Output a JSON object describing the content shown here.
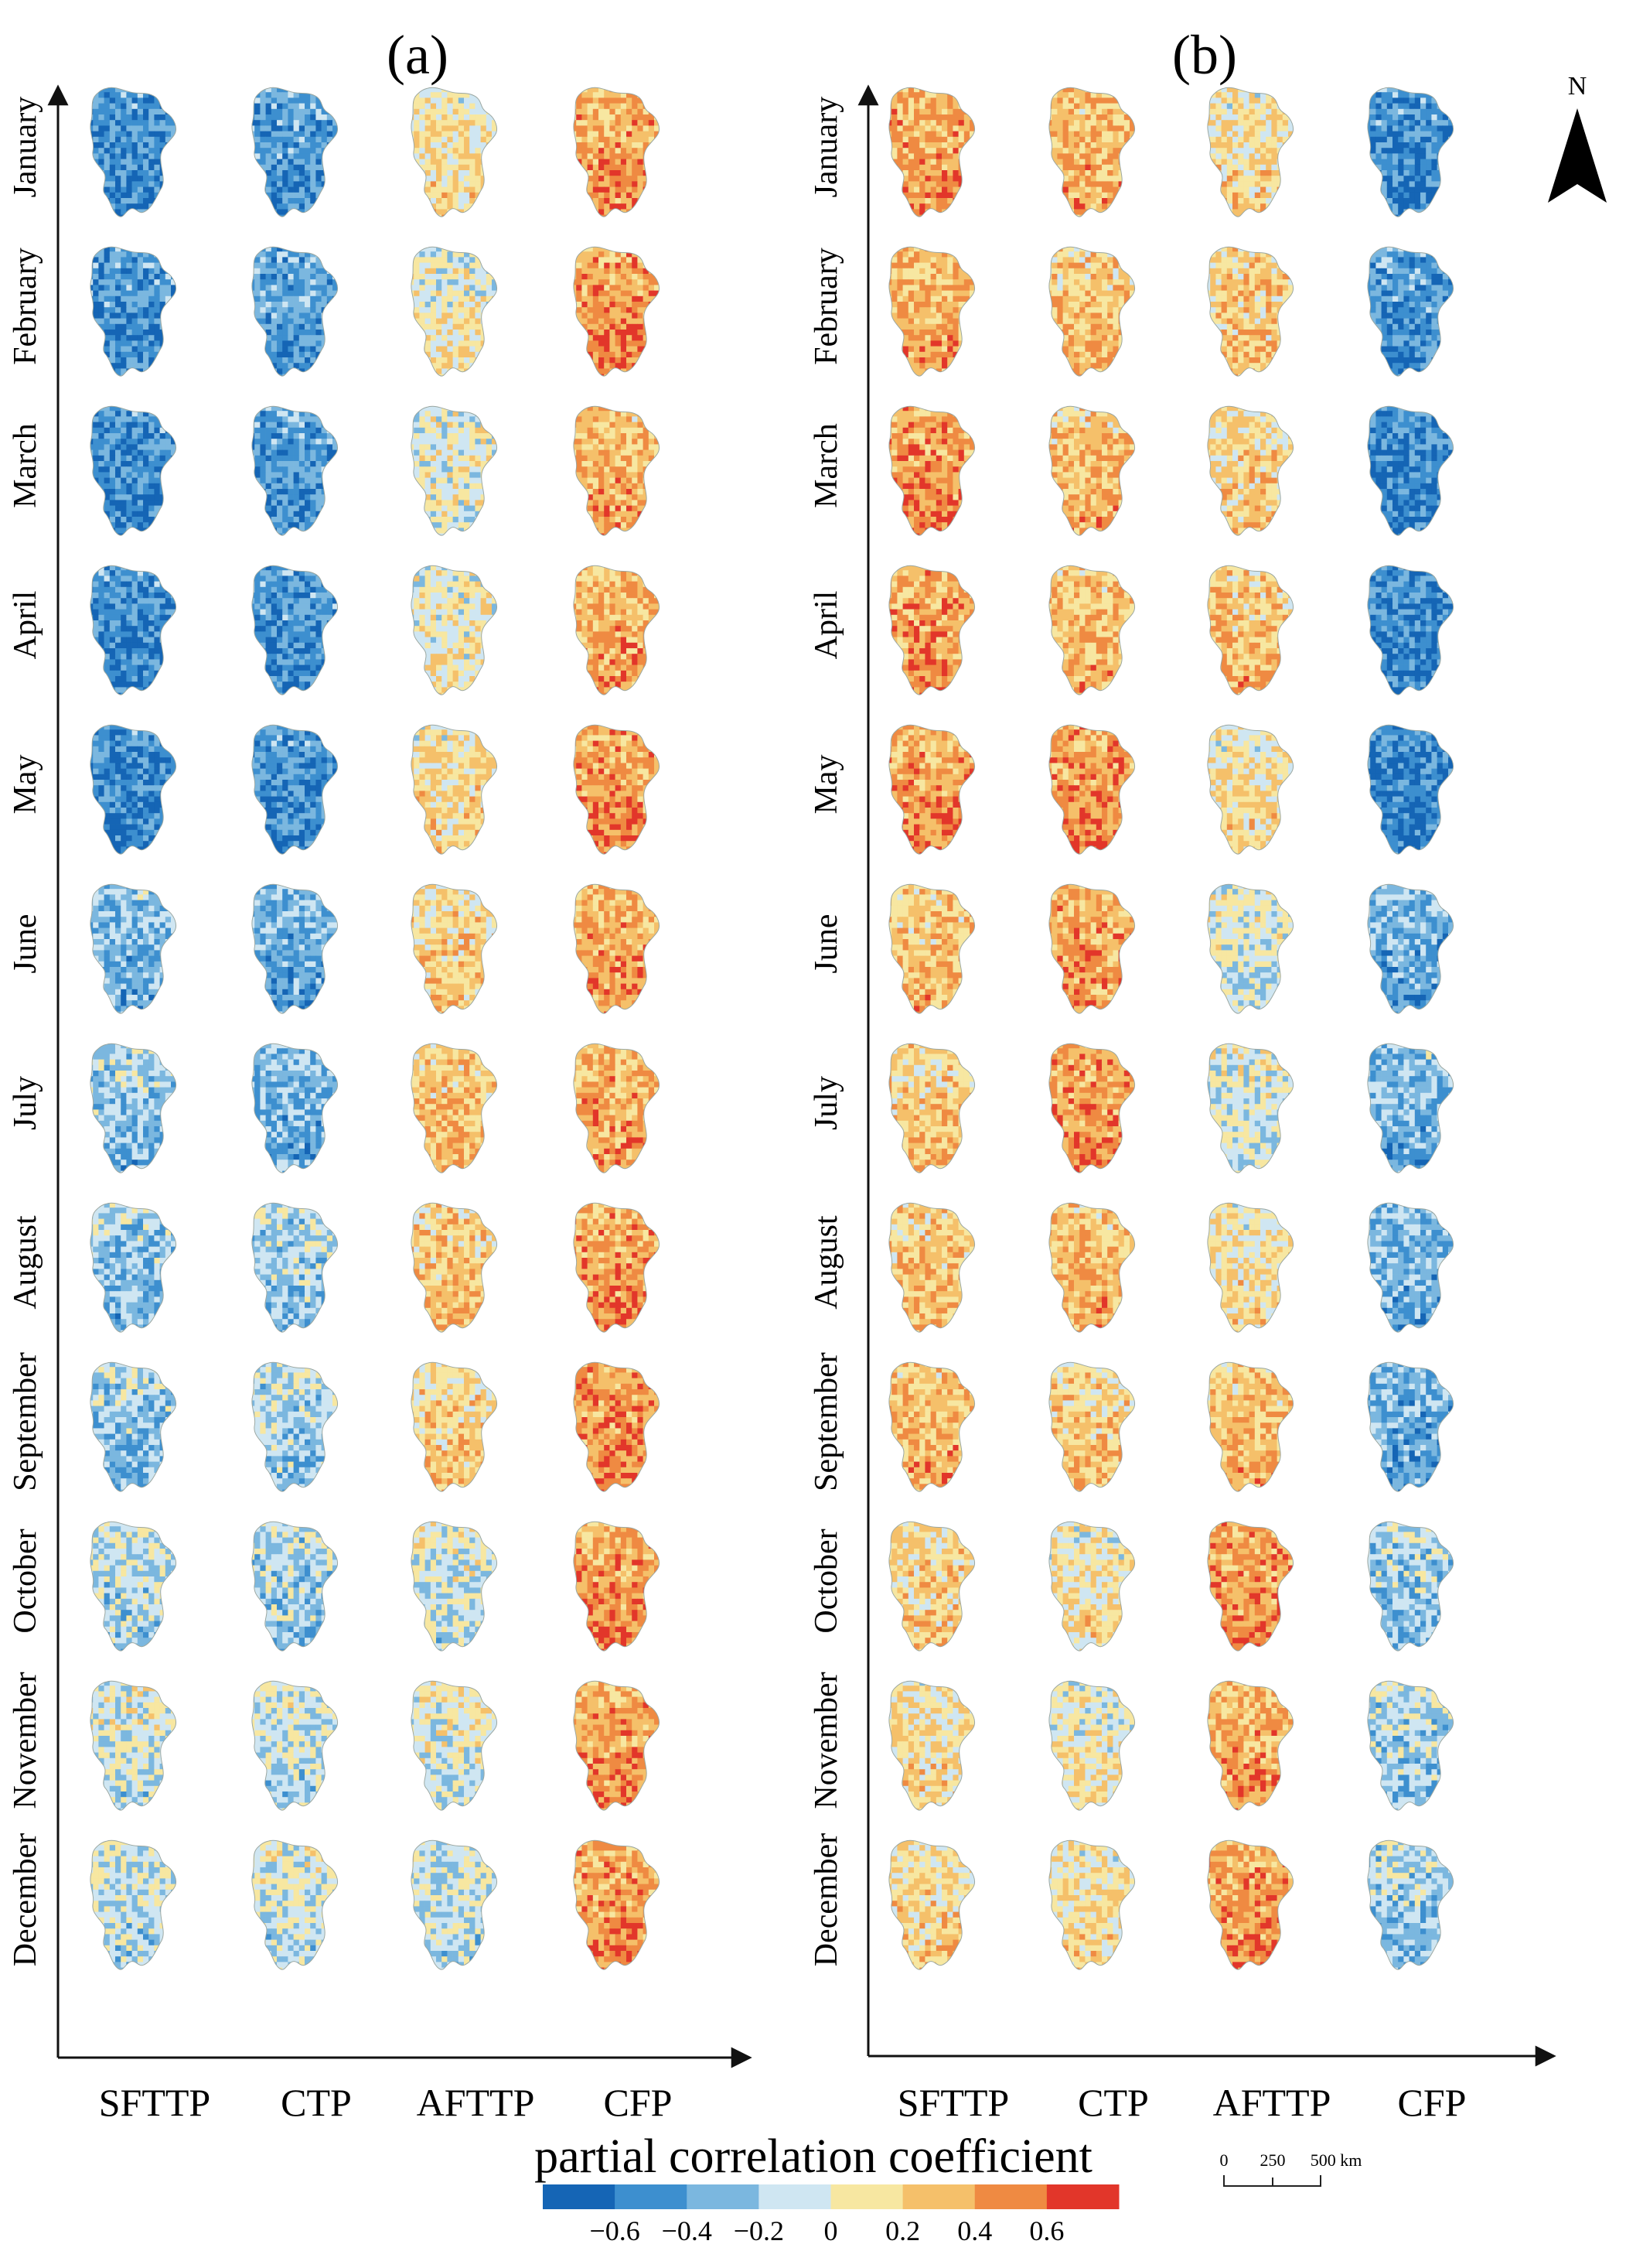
{
  "panels": [
    {
      "id": "a",
      "title": "(a)"
    },
    {
      "id": "b",
      "title": "(b)"
    }
  ],
  "months": [
    "January",
    "February",
    "March",
    "April",
    "May",
    "June",
    "July",
    "August",
    "September",
    "October",
    "November",
    "December"
  ],
  "columns": [
    "SFTTP",
    "CTP",
    "AFTTP",
    "CFP"
  ],
  "legend": {
    "title": "partial correlation coefficient",
    "ticks": [
      "−0.6",
      "−0.4",
      "−0.2",
      "0",
      "0.2",
      "0.4",
      "0.6"
    ],
    "colors": [
      "#1565b5",
      "#3d8fcf",
      "#7bb7df",
      "#cfe6f2",
      "#f7e7a1",
      "#f5c06a",
      "#ef8a42",
      "#e2362a"
    ]
  },
  "scalebar": {
    "labels": [
      "0",
      "250",
      "500 km"
    ]
  },
  "north": {
    "label": "N"
  },
  "map_bias": {
    "a": [
      [
        -0.5,
        -0.42,
        0.1,
        0.38
      ],
      [
        -0.45,
        -0.42,
        0.02,
        0.42
      ],
      [
        -0.5,
        -0.45,
        0.0,
        0.33
      ],
      [
        -0.5,
        -0.46,
        0.02,
        0.33
      ],
      [
        -0.52,
        -0.5,
        0.12,
        0.4
      ],
      [
        -0.3,
        -0.36,
        0.18,
        0.36
      ],
      [
        -0.25,
        -0.32,
        0.22,
        0.36
      ],
      [
        -0.25,
        -0.2,
        0.24,
        0.4
      ],
      [
        -0.24,
        -0.18,
        0.18,
        0.42
      ],
      [
        -0.14,
        -0.18,
        -0.05,
        0.42
      ],
      [
        -0.06,
        -0.1,
        -0.02,
        0.38
      ],
      [
        -0.12,
        -0.08,
        -0.1,
        0.4
      ]
    ],
    "b": [
      [
        0.38,
        0.3,
        0.12,
        -0.48
      ],
      [
        0.32,
        0.26,
        0.22,
        -0.45
      ],
      [
        0.42,
        0.28,
        0.18,
        -0.52
      ],
      [
        0.4,
        0.28,
        0.25,
        -0.52
      ],
      [
        0.4,
        0.44,
        0.1,
        -0.55
      ],
      [
        0.26,
        0.38,
        -0.05,
        -0.35
      ],
      [
        0.22,
        0.42,
        -0.05,
        -0.32
      ],
      [
        0.24,
        0.3,
        0.1,
        -0.32
      ],
      [
        0.3,
        0.2,
        0.28,
        -0.36
      ],
      [
        0.18,
        0.08,
        0.42,
        -0.22
      ],
      [
        0.12,
        0.04,
        0.36,
        -0.18
      ],
      [
        0.16,
        0.1,
        0.4,
        -0.2
      ]
    ]
  }
}
